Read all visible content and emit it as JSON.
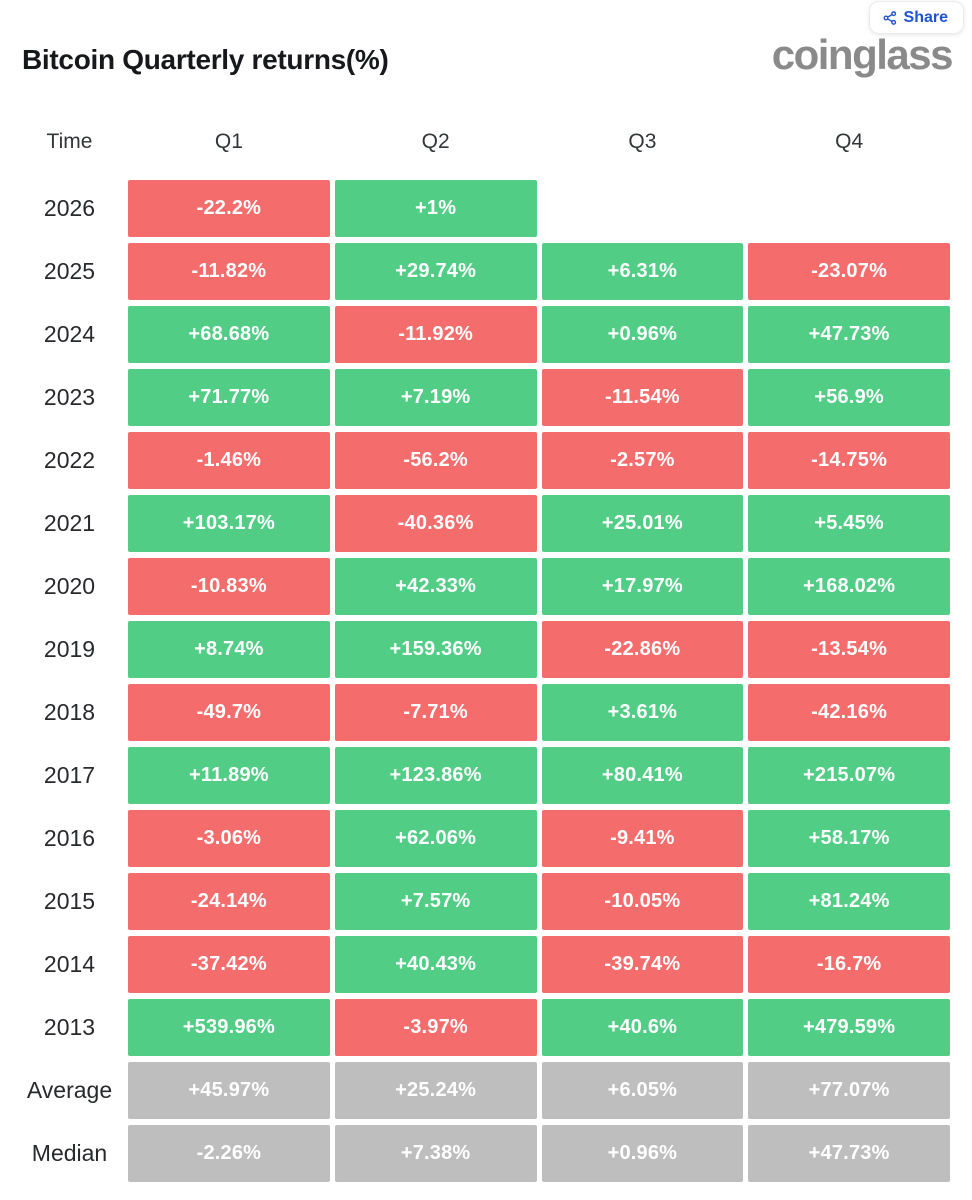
{
  "page": {
    "title": "Bitcoin Quarterly returns(%)",
    "brand": "coinglass"
  },
  "share_button": {
    "label": "Share",
    "icon": "share-nodes-icon"
  },
  "colors": {
    "positive": "#52CD85",
    "negative": "#F56C6C",
    "stat": "#BEBEBE",
    "share_blue": "#1E53D6"
  },
  "table": {
    "columns": [
      "Time",
      "Q1",
      "Q2",
      "Q3",
      "Q4"
    ],
    "rows": [
      {
        "label": "2026",
        "cells": [
          {
            "text": "-22.2%",
            "tone": "neg"
          },
          {
            "text": "+1%",
            "tone": "pos"
          },
          null,
          null
        ]
      },
      {
        "label": "2025",
        "cells": [
          {
            "text": "-11.82%",
            "tone": "neg"
          },
          {
            "text": "+29.74%",
            "tone": "pos"
          },
          {
            "text": "+6.31%",
            "tone": "pos"
          },
          {
            "text": "-23.07%",
            "tone": "neg"
          }
        ]
      },
      {
        "label": "2024",
        "cells": [
          {
            "text": "+68.68%",
            "tone": "pos"
          },
          {
            "text": "-11.92%",
            "tone": "neg"
          },
          {
            "text": "+0.96%",
            "tone": "pos"
          },
          {
            "text": "+47.73%",
            "tone": "pos"
          }
        ]
      },
      {
        "label": "2023",
        "cells": [
          {
            "text": "+71.77%",
            "tone": "pos"
          },
          {
            "text": "+7.19%",
            "tone": "pos"
          },
          {
            "text": "-11.54%",
            "tone": "neg"
          },
          {
            "text": "+56.9%",
            "tone": "pos"
          }
        ]
      },
      {
        "label": "2022",
        "cells": [
          {
            "text": "-1.46%",
            "tone": "neg"
          },
          {
            "text": "-56.2%",
            "tone": "neg"
          },
          {
            "text": "-2.57%",
            "tone": "neg"
          },
          {
            "text": "-14.75%",
            "tone": "neg"
          }
        ]
      },
      {
        "label": "2021",
        "cells": [
          {
            "text": "+103.17%",
            "tone": "pos"
          },
          {
            "text": "-40.36%",
            "tone": "neg"
          },
          {
            "text": "+25.01%",
            "tone": "pos"
          },
          {
            "text": "+5.45%",
            "tone": "pos"
          }
        ]
      },
      {
        "label": "2020",
        "cells": [
          {
            "text": "-10.83%",
            "tone": "neg"
          },
          {
            "text": "+42.33%",
            "tone": "pos"
          },
          {
            "text": "+17.97%",
            "tone": "pos"
          },
          {
            "text": "+168.02%",
            "tone": "pos"
          }
        ]
      },
      {
        "label": "2019",
        "cells": [
          {
            "text": "+8.74%",
            "tone": "pos"
          },
          {
            "text": "+159.36%",
            "tone": "pos"
          },
          {
            "text": "-22.86%",
            "tone": "neg"
          },
          {
            "text": "-13.54%",
            "tone": "neg"
          }
        ]
      },
      {
        "label": "2018",
        "cells": [
          {
            "text": "-49.7%",
            "tone": "neg"
          },
          {
            "text": "-7.71%",
            "tone": "neg"
          },
          {
            "text": "+3.61%",
            "tone": "pos"
          },
          {
            "text": "-42.16%",
            "tone": "neg"
          }
        ]
      },
      {
        "label": "2017",
        "cells": [
          {
            "text": "+11.89%",
            "tone": "pos"
          },
          {
            "text": "+123.86%",
            "tone": "pos"
          },
          {
            "text": "+80.41%",
            "tone": "pos"
          },
          {
            "text": "+215.07%",
            "tone": "pos"
          }
        ]
      },
      {
        "label": "2016",
        "cells": [
          {
            "text": "-3.06%",
            "tone": "neg"
          },
          {
            "text": "+62.06%",
            "tone": "pos"
          },
          {
            "text": "-9.41%",
            "tone": "neg"
          },
          {
            "text": "+58.17%",
            "tone": "pos"
          }
        ]
      },
      {
        "label": "2015",
        "cells": [
          {
            "text": "-24.14%",
            "tone": "neg"
          },
          {
            "text": "+7.57%",
            "tone": "pos"
          },
          {
            "text": "-10.05%",
            "tone": "neg"
          },
          {
            "text": "+81.24%",
            "tone": "pos"
          }
        ]
      },
      {
        "label": "2014",
        "cells": [
          {
            "text": "-37.42%",
            "tone": "neg"
          },
          {
            "text": "+40.43%",
            "tone": "pos"
          },
          {
            "text": "-39.74%",
            "tone": "neg"
          },
          {
            "text": "-16.7%",
            "tone": "neg"
          }
        ]
      },
      {
        "label": "2013",
        "cells": [
          {
            "text": "+539.96%",
            "tone": "pos"
          },
          {
            "text": "-3.97%",
            "tone": "neg"
          },
          {
            "text": "+40.6%",
            "tone": "pos"
          },
          {
            "text": "+479.59%",
            "tone": "pos"
          }
        ]
      },
      {
        "label": "Average",
        "cells": [
          {
            "text": "+45.97%",
            "tone": "stat"
          },
          {
            "text": "+25.24%",
            "tone": "stat"
          },
          {
            "text": "+6.05%",
            "tone": "stat"
          },
          {
            "text": "+77.07%",
            "tone": "stat"
          }
        ]
      },
      {
        "label": "Median",
        "cells": [
          {
            "text": "-2.26%",
            "tone": "stat"
          },
          {
            "text": "+7.38%",
            "tone": "stat"
          },
          {
            "text": "+0.96%",
            "tone": "stat"
          },
          {
            "text": "+47.73%",
            "tone": "stat"
          }
        ]
      }
    ]
  },
  "chart_data": {
    "type": "heatmap",
    "title": "Bitcoin Quarterly returns(%)",
    "categories": [
      "Q1",
      "Q2",
      "Q3",
      "Q4"
    ],
    "row_labels": [
      "2026",
      "2025",
      "2024",
      "2023",
      "2022",
      "2021",
      "2020",
      "2019",
      "2018",
      "2017",
      "2016",
      "2015",
      "2014",
      "2013",
      "Average",
      "Median"
    ],
    "values_pct": [
      [
        -22.2,
        1,
        null,
        null
      ],
      [
        -11.82,
        29.74,
        6.31,
        -23.07
      ],
      [
        68.68,
        -11.92,
        0.96,
        47.73
      ],
      [
        71.77,
        7.19,
        -11.54,
        56.9
      ],
      [
        -1.46,
        -56.2,
        -2.57,
        -14.75
      ],
      [
        103.17,
        -40.36,
        25.01,
        5.45
      ],
      [
        -10.83,
        42.33,
        17.97,
        168.02
      ],
      [
        8.74,
        159.36,
        -22.86,
        -13.54
      ],
      [
        -49.7,
        -7.71,
        3.61,
        -42.16
      ],
      [
        11.89,
        123.86,
        80.41,
        215.07
      ],
      [
        -3.06,
        62.06,
        -9.41,
        58.17
      ],
      [
        -24.14,
        7.57,
        -10.05,
        81.24
      ],
      [
        -37.42,
        40.43,
        -39.74,
        -16.7
      ],
      [
        539.96,
        -3.97,
        40.6,
        479.59
      ],
      [
        45.97,
        25.24,
        6.05,
        77.07
      ],
      [
        -2.26,
        7.38,
        0.96,
        47.73
      ]
    ],
    "legend_position": "none",
    "color_coding": "green = positive return, red = negative return, gray = summary rows"
  }
}
